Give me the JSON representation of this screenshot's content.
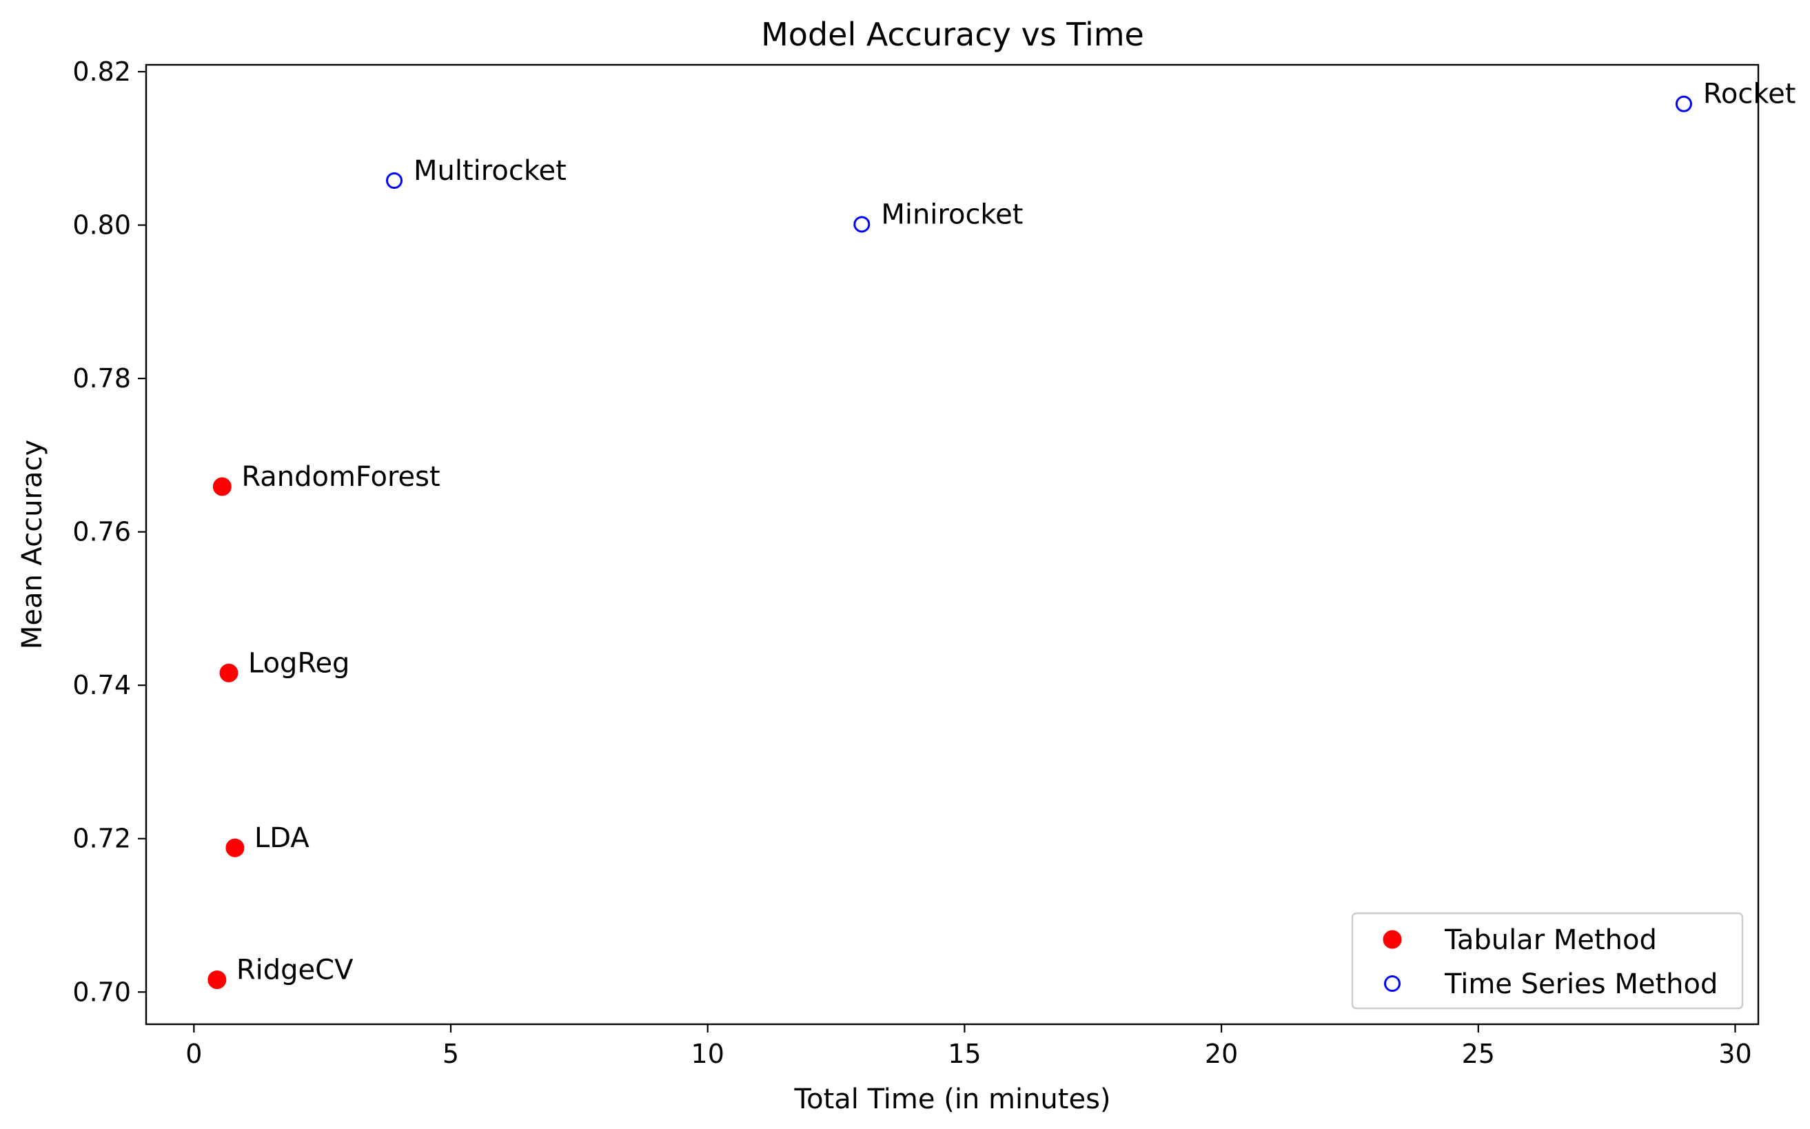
{
  "chart_data": {
    "type": "scatter",
    "title": "Model Accuracy vs Time",
    "xlabel": "Total Time (in minutes)",
    "ylabel": "Mean Accuracy",
    "xlim": [
      -0.93,
      30.45
    ],
    "ylim": [
      0.6958,
      0.8209
    ],
    "xticks": [
      0,
      5,
      10,
      15,
      20,
      25,
      30
    ],
    "yticks": [
      0.7,
      0.72,
      0.74,
      0.76,
      0.78,
      0.8,
      0.82
    ],
    "ytick_labels": [
      "0.70",
      "0.72",
      "0.74",
      "0.76",
      "0.78",
      "0.80",
      "0.82"
    ],
    "grid": false,
    "legend_position": "bottom-right",
    "series": [
      {
        "name": "Tabular Method",
        "marker": "filled-circle",
        "color": "#ff0000",
        "points": [
          {
            "label": "RandomForest",
            "x": 0.55,
            "y": 0.7659
          },
          {
            "label": "LogReg",
            "x": 0.68,
            "y": 0.7416
          },
          {
            "label": "LDA",
            "x": 0.8,
            "y": 0.7188
          },
          {
            "label": "RidgeCV",
            "x": 0.45,
            "y": 0.7016
          }
        ]
      },
      {
        "name": "Time Series Method",
        "marker": "hollow-circle",
        "color": "#0000ff",
        "points": [
          {
            "label": "Multirocket",
            "x": 3.9,
            "y": 0.8058
          },
          {
            "label": "Minirocket",
            "x": 13.0,
            "y": 0.8001
          },
          {
            "label": "Rocket",
            "x": 29.0,
            "y": 0.8158
          }
        ]
      }
    ]
  }
}
